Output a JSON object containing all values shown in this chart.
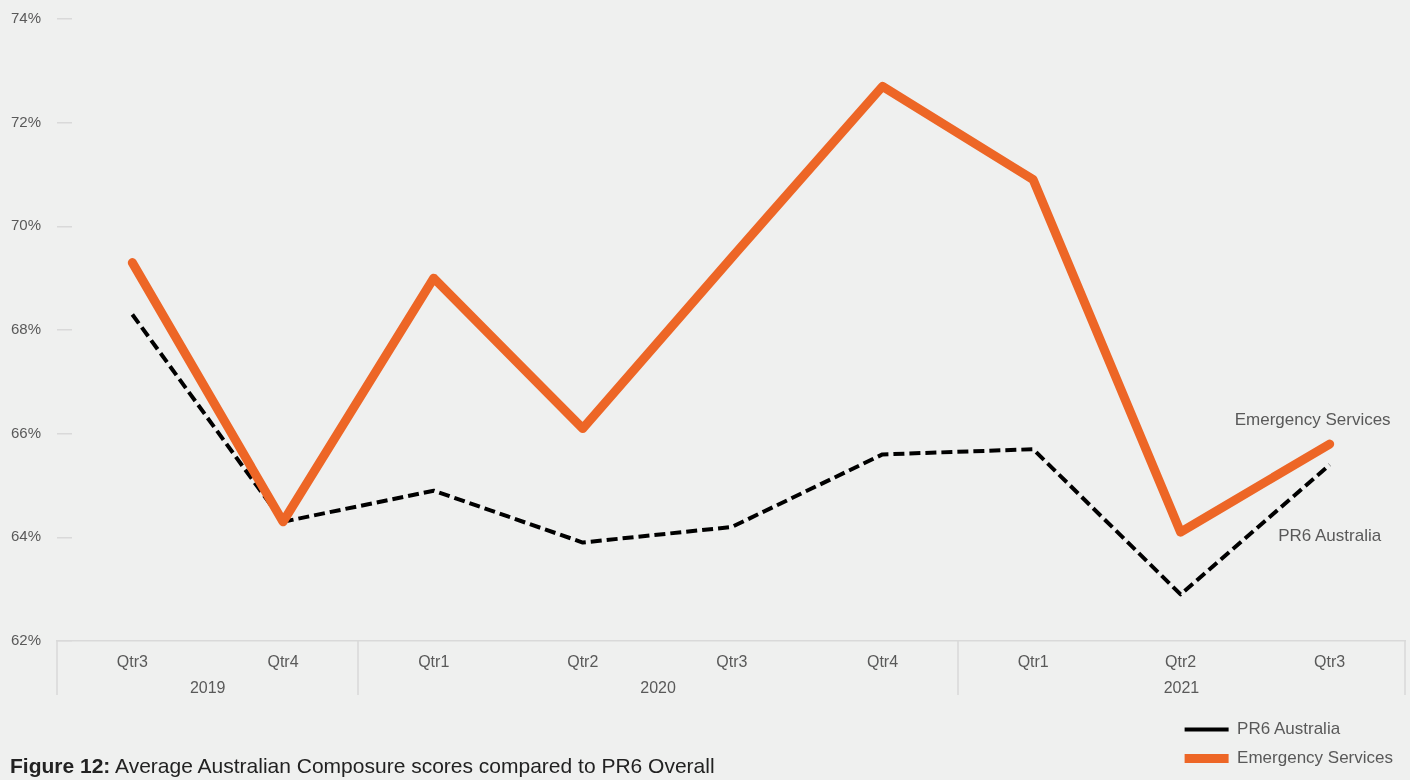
{
  "chart_data": {
    "type": "line",
    "title": "Figure 12: Average Australian Composure scores compared to PR6 Overall",
    "x": [
      "2019-07",
      "2019-10",
      "2020-01",
      "2020-04",
      "2020-07",
      "2020-10",
      "2021-01",
      "2021-04",
      "2021-07"
    ],
    "xlim": [
      "2019-05-16",
      "2021-08-16"
    ],
    "xticks": [
      {
        "value": "2019-07",
        "label": "Qtr3"
      },
      {
        "value": "2019-10",
        "label": "Qtr4"
      },
      {
        "value": "2020-01",
        "label": "Qtr1"
      },
      {
        "value": "2020-04",
        "label": "Qtr2"
      },
      {
        "value": "2020-07",
        "label": "Qtr3"
      },
      {
        "value": "2020-10",
        "label": "Qtr4"
      },
      {
        "value": "2021-01",
        "label": "Qtr1"
      },
      {
        "value": "2021-04",
        "label": "Qtr2"
      },
      {
        "value": "2021-07",
        "label": "Qtr3"
      }
    ],
    "annotations": [
      "2019",
      "2020",
      "2021"
    ],
    "ylim": [
      62,
      74
    ],
    "yticks": [
      {
        "value": 62,
        "label": "62%"
      },
      {
        "value": 64,
        "label": "64%"
      },
      {
        "value": 66,
        "label": "66%"
      },
      {
        "value": 68,
        "label": "68%"
      },
      {
        "value": 70,
        "label": "70%"
      },
      {
        "value": 72,
        "label": "72%"
      },
      {
        "value": 74,
        "label": "74%"
      }
    ],
    "series": [
      {
        "name": "PR6 Australia",
        "color": "#000000",
        "line_style": "dashed",
        "values": [
          68.3,
          64.3,
          64.9,
          63.9,
          64.2,
          65.6,
          65.7,
          62.9,
          65.4
        ]
      },
      {
        "name": "Emergency Services",
        "color": "#ed6626",
        "line_style": "solid",
        "values": [
          69.3,
          64.3,
          69.0,
          66.1,
          69.4,
          72.7,
          70.9,
          64.1,
          65.8
        ]
      }
    ],
    "legend": "bottom right",
    "marker": "none"
  }
}
